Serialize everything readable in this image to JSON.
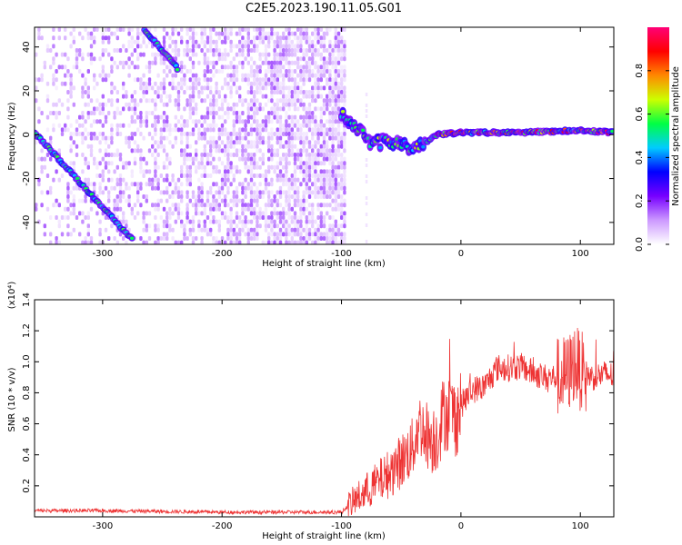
{
  "title": "C2E5.2023.190.11.05.G01",
  "chart_data": [
    {
      "type": "heatmap",
      "xlabel": "Height of straight line (km)",
      "ylabel": "Frequency (Hz)",
      "xlim": [
        -357,
        128
      ],
      "ylim": [
        -50,
        49
      ],
      "xticks": [
        -300,
        -200,
        -100,
        0,
        100
      ],
      "yticks": [
        -40,
        -20,
        0,
        20,
        40
      ],
      "colorbar": {
        "label": "Normalized spectral amplitude",
        "range": [
          0.0,
          1.0
        ],
        "ticks": [
          "0.0",
          "0.2",
          "0.4",
          "0.6",
          "0.8"
        ],
        "tick_values": [
          0.0,
          0.2,
          0.4,
          0.6,
          0.8
        ],
        "colormap": [
          "#ffffff",
          "#cc99ff",
          "#7700ff",
          "#0000ff",
          "#00ccff",
          "#00ff44",
          "#ccff00",
          "#ff8800",
          "#ff0000",
          "#ff0077"
        ]
      },
      "noise_region_x": [
        -357,
        -97
      ],
      "features": [
        {
          "name": "",
          "x": [
            -357,
            -275
          ],
          "y": [
            1,
            -48
          ]
        },
        {
          "name": "",
          "x": [
            -265,
            -237
          ],
          "y": [
            48,
            30
          ]
        },
        {
          "name": "",
          "x": [
            -100,
            -75,
            -55,
            -40,
            -20,
            0,
            50,
            100,
            128
          ],
          "y": [
            10,
            -4,
            -3,
            -7,
            0,
            1,
            1,
            2,
            1
          ]
        }
      ]
    },
    {
      "type": "line",
      "xlabel": "Height of straight line (km)",
      "ylabel": "SNR (10 * v/v)",
      "yexponent": "(x10⁴)",
      "xlim": [
        -357,
        128
      ],
      "ylim": [
        0,
        14000
      ],
      "xticks": [
        -300,
        -200,
        -100,
        0,
        100
      ],
      "yticks": [
        2000,
        4000,
        6000,
        8000,
        10000,
        12000,
        14000
      ],
      "ytick_labels": [
        "0.2",
        "0.4",
        "0.6",
        "0.8",
        "1.0",
        "1.2",
        "1.4"
      ],
      "color": "#ee3333",
      "series": [
        {
          "x": [
            -357,
            -300,
            -200,
            -100,
            -90,
            -80,
            -70,
            -60,
            -50,
            -40,
            -35,
            -30,
            -25,
            -20,
            -15,
            -10,
            -5,
            0,
            10,
            20,
            30,
            40,
            50,
            60,
            70,
            80,
            90,
            95,
            100,
            110,
            120,
            128
          ],
          "y": [
            400,
            400,
            300,
            300,
            1000,
            1600,
            2200,
            2800,
            3600,
            4500,
            6000,
            5500,
            5000,
            5200,
            6600,
            6800,
            6400,
            7200,
            8200,
            8400,
            9600,
            9600,
            9700,
            9300,
            9000,
            9000,
            9200,
            10000,
            9400,
            9000,
            9200,
            9100
          ]
        }
      ]
    }
  ]
}
